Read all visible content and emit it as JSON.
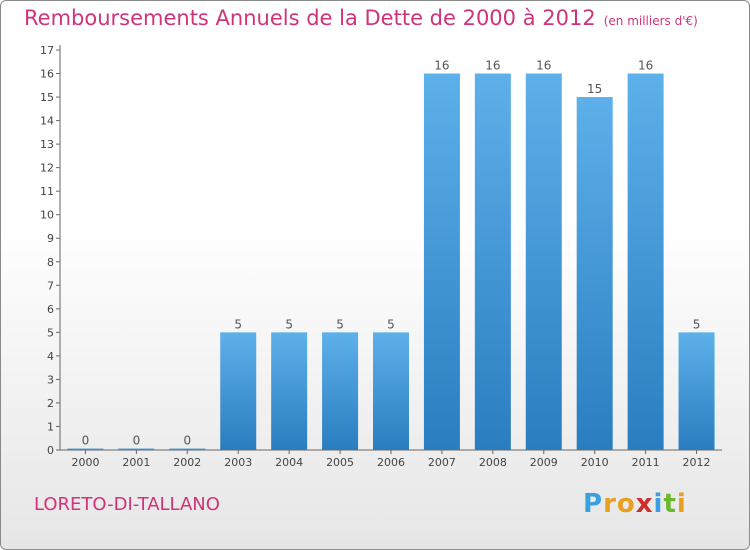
{
  "title": "Remboursements Annuels de la Dette de 2000 à 2012",
  "subtitle": "(en milliers d'€)",
  "commune": "LORETO-DI-TALLANO",
  "logo_text": "Proxiti",
  "colors": {
    "title": "#d0337a",
    "bar_top": "#5eb0ea",
    "bar_bottom": "#2a7ec0",
    "grid": "#dddddd"
  },
  "chart_data": {
    "type": "bar",
    "title": "Remboursements Annuels de la Dette de 2000 à 2012",
    "xlabel": "",
    "ylabel": "",
    "categories": [
      "2000",
      "2001",
      "2002",
      "2003",
      "2004",
      "2005",
      "2006",
      "2007",
      "2008",
      "2009",
      "2010",
      "2011",
      "2012"
    ],
    "values": [
      0,
      0,
      0,
      5,
      5,
      5,
      5,
      16,
      16,
      16,
      15,
      16,
      5
    ],
    "ylim": [
      0,
      17
    ],
    "yticks": [
      0,
      1,
      2,
      3,
      4,
      5,
      6,
      7,
      8,
      9,
      10,
      11,
      12,
      13,
      14,
      15,
      16,
      17
    ],
    "grid": false,
    "data_labels": true
  }
}
